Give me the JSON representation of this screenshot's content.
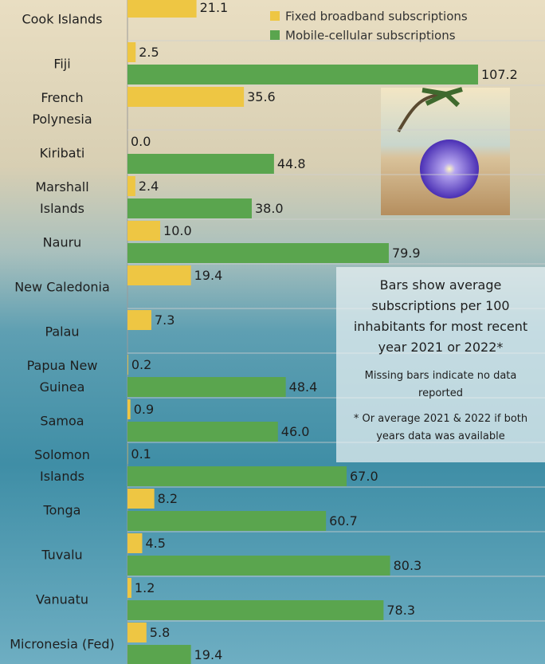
{
  "chart_data": {
    "type": "bar",
    "orientation": "horizontal",
    "categories": [
      "Cook Islands",
      "Fiji",
      "French Polynesia",
      "Kiribati",
      "Marshall Islands",
      "Nauru",
      "New Caledonia",
      "Palau",
      "Papua New Guinea",
      "Samoa",
      "Solomon Islands",
      "Tonga",
      "Tuvalu",
      "Vanuatu",
      "Micronesia (Fed)"
    ],
    "series": [
      {
        "name": "Fixed broadband subscriptions",
        "color": "#eec643",
        "values": [
          21.1,
          2.5,
          35.6,
          0.0,
          2.4,
          10.0,
          19.4,
          7.3,
          0.2,
          0.9,
          0.1,
          8.2,
          4.5,
          1.2,
          5.8
        ],
        "value_labels": [
          "21.1",
          "2.5",
          "35.6",
          "0.0",
          "2.4",
          "10.0",
          "19.4",
          "7.3",
          "0.2",
          "0.9",
          "0.1",
          "8.2",
          "4.5",
          "1.2",
          "5.8"
        ]
      },
      {
        "name": "Mobile-cellular subscriptions",
        "color": "#5aa54e",
        "values": [
          null,
          107.2,
          null,
          44.8,
          38.0,
          79.9,
          null,
          null,
          48.4,
          46.0,
          67.0,
          60.7,
          80.3,
          78.3,
          19.4
        ],
        "value_labels": [
          null,
          "107.2",
          null,
          "44.8",
          "38.0",
          "79.9",
          null,
          null,
          "48.4",
          "46.0",
          "67.0",
          "60.7",
          "80.3",
          "78.3",
          "19.4"
        ]
      }
    ],
    "annotations": [
      "Bars show average subscriptions per 100 inhabitants for most recent year 2021 or 2022*",
      "Missing bars indicate no data reported",
      "* Or average 2021 & 2022 if both years data was available"
    ]
  }
}
